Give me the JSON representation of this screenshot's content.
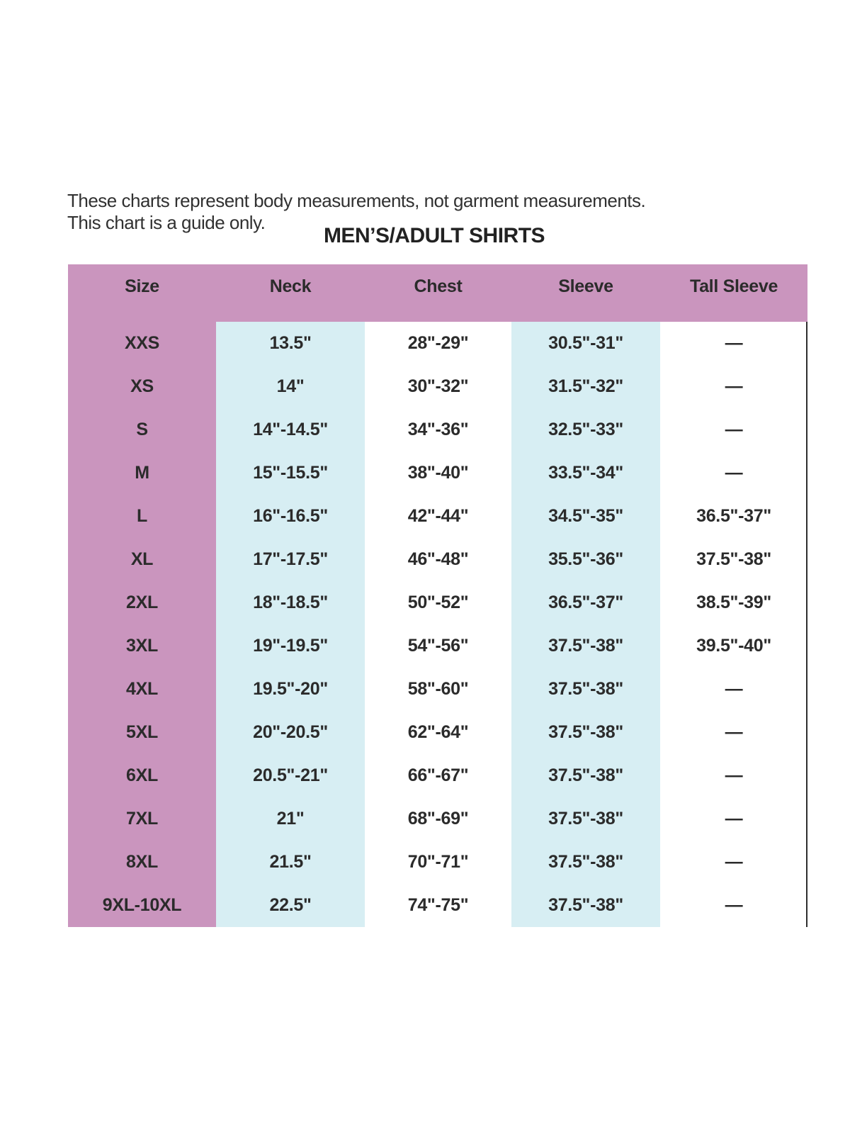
{
  "page": {
    "disclaimer_line1": "These charts represent body measurements, not garment measurements.",
    "disclaimer_line2": "This chart is a guide only.",
    "title": "MEN’S/ADULT SHIRTS"
  },
  "colors": {
    "header_pink": "#CA95BE",
    "column_blue": "#D7EEF3",
    "text_dark": "#2B2B2B",
    "border_line": "#2E2E2E"
  },
  "chart_data": {
    "type": "table",
    "title": "MEN’S/ADULT SHIRTS",
    "notes": [
      "These charts represent body measurements, not garment measurements.",
      "This chart is a guide only."
    ],
    "columns": [
      "Size",
      "Neck",
      "Chest",
      "Sleeve",
      "Tall Sleeve"
    ],
    "rows": [
      [
        "XXS",
        "13.5\"",
        "28\"-29\"",
        "30.5\"-31\"",
        "—"
      ],
      [
        "XS",
        "14\"",
        "30\"-32\"",
        "31.5\"-32\"",
        "—"
      ],
      [
        "S",
        "14\"-14.5\"",
        "34\"-36\"",
        "32.5\"-33\"",
        "—"
      ],
      [
        "M",
        "15\"-15.5\"",
        "38\"-40\"",
        "33.5\"-34\"",
        "—"
      ],
      [
        "L",
        "16\"-16.5\"",
        "42\"-44\"",
        "34.5\"-35\"",
        "36.5\"-37\""
      ],
      [
        "XL",
        "17\"-17.5\"",
        "46\"-48\"",
        "35.5\"-36\"",
        "37.5\"-38\""
      ],
      [
        "2XL",
        "18\"-18.5\"",
        "50\"-52\"",
        "36.5\"-37\"",
        "38.5\"-39\""
      ],
      [
        "3XL",
        "19\"-19.5\"",
        "54\"-56\"",
        "37.5\"-38\"",
        "39.5\"-40\""
      ],
      [
        "4XL",
        "19.5\"-20\"",
        "58\"-60\"",
        "37.5\"-38\"",
        "—"
      ],
      [
        "5XL",
        "20\"-20.5\"",
        "62\"-64\"",
        "37.5\"-38\"",
        "—"
      ],
      [
        "6XL",
        "20.5\"-21\"",
        "66\"-67\"",
        "37.5\"-38\"",
        "—"
      ],
      [
        "7XL",
        "21\"",
        "68\"-69\"",
        "37.5\"-38\"",
        "—"
      ],
      [
        "8XL",
        "21.5\"",
        "70\"-71\"",
        "37.5\"-38\"",
        "—"
      ],
      [
        "9XL-10XL",
        "22.5\"",
        "74\"-75\"",
        "37.5\"-38\"",
        "—"
      ]
    ]
  }
}
